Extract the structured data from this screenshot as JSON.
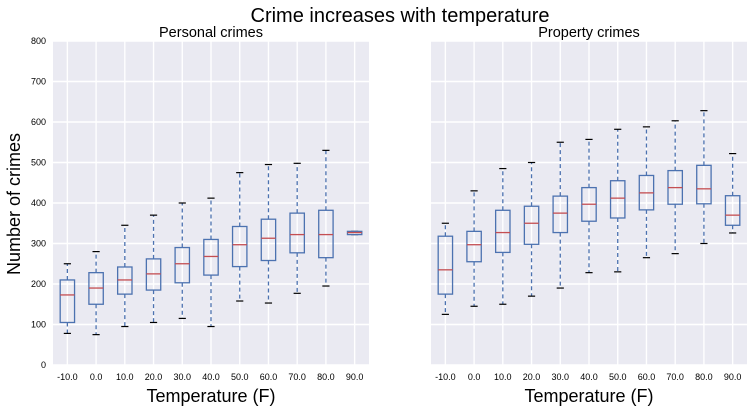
{
  "chart_data": {
    "type": "box",
    "title": "Crime increases with temperature",
    "ylabel": "Number of crimes",
    "ylim": [
      0,
      800
    ],
    "yticks": [
      0,
      100,
      200,
      300,
      400,
      500,
      600,
      700,
      800
    ],
    "categories": [
      "-10.0",
      "0.0",
      "10.0",
      "20.0",
      "30.0",
      "40.0",
      "50.0",
      "60.0",
      "70.0",
      "80.0",
      "90.0"
    ],
    "grid": true,
    "colors": {
      "background": "#eaeaf2",
      "grid": "#ffffff",
      "box": "#4c72b0",
      "median": "#c44e52"
    },
    "panels": [
      {
        "title": "Personal crimes",
        "xlabel": "Temperature (F)",
        "boxes": [
          {
            "category": "-10.0",
            "whislo": 78,
            "q1": 105,
            "median": 173,
            "q3": 210,
            "whishi": 250
          },
          {
            "category": "0.0",
            "whislo": 75,
            "q1": 150,
            "median": 190,
            "q3": 228,
            "whishi": 280
          },
          {
            "category": "10.0",
            "whislo": 95,
            "q1": 175,
            "median": 210,
            "q3": 242,
            "whishi": 345
          },
          {
            "category": "20.0",
            "whislo": 105,
            "q1": 185,
            "median": 225,
            "q3": 262,
            "whishi": 370
          },
          {
            "category": "30.0",
            "whislo": 115,
            "q1": 203,
            "median": 250,
            "q3": 290,
            "whishi": 400
          },
          {
            "category": "40.0",
            "whislo": 95,
            "q1": 222,
            "median": 268,
            "q3": 310,
            "whishi": 412
          },
          {
            "category": "50.0",
            "whislo": 158,
            "q1": 243,
            "median": 297,
            "q3": 342,
            "whishi": 475
          },
          {
            "category": "60.0",
            "whislo": 153,
            "q1": 258,
            "median": 313,
            "q3": 360,
            "whishi": 495
          },
          {
            "category": "70.0",
            "whislo": 177,
            "q1": 277,
            "median": 322,
            "q3": 375,
            "whishi": 498
          },
          {
            "category": "80.0",
            "whislo": 195,
            "q1": 265,
            "median": 322,
            "q3": 382,
            "whishi": 530
          },
          {
            "category": "90.0",
            "whislo": 322,
            "q1": 322,
            "median": 327,
            "q3": 330,
            "whishi": 330
          }
        ]
      },
      {
        "title": "Property crimes",
        "xlabel": "Temperature (F)",
        "boxes": [
          {
            "category": "-10.0",
            "whislo": 125,
            "q1": 175,
            "median": 235,
            "q3": 318,
            "whishi": 350
          },
          {
            "category": "0.0",
            "whislo": 145,
            "q1": 255,
            "median": 297,
            "q3": 330,
            "whishi": 430
          },
          {
            "category": "10.0",
            "whislo": 150,
            "q1": 278,
            "median": 327,
            "q3": 382,
            "whishi": 485
          },
          {
            "category": "20.0",
            "whislo": 170,
            "q1": 298,
            "median": 350,
            "q3": 392,
            "whishi": 500
          },
          {
            "category": "30.0",
            "whislo": 190,
            "q1": 327,
            "median": 375,
            "q3": 417,
            "whishi": 550
          },
          {
            "category": "40.0",
            "whislo": 228,
            "q1": 355,
            "median": 397,
            "q3": 438,
            "whishi": 557
          },
          {
            "category": "50.0",
            "whislo": 230,
            "q1": 363,
            "median": 412,
            "q3": 455,
            "whishi": 582
          },
          {
            "category": "60.0",
            "whislo": 265,
            "q1": 383,
            "median": 425,
            "q3": 468,
            "whishi": 588
          },
          {
            "category": "70.0",
            "whislo": 275,
            "q1": 397,
            "median": 438,
            "q3": 480,
            "whishi": 603
          },
          {
            "category": "80.0",
            "whislo": 300,
            "q1": 398,
            "median": 435,
            "q3": 493,
            "whishi": 628
          },
          {
            "category": "90.0",
            "whislo": 326,
            "q1": 345,
            "median": 370,
            "q3": 418,
            "whishi": 522
          }
        ]
      }
    ]
  }
}
